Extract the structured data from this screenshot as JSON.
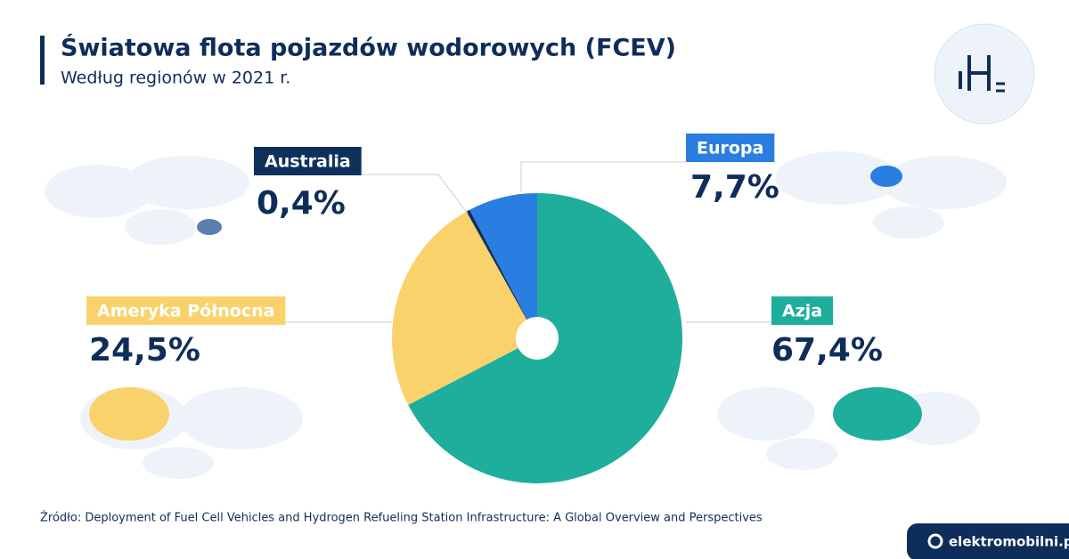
{
  "chart_data": {
    "type": "pie",
    "title": "Światowa flota pojazdów wodorowych (FCEV)",
    "subtitle": "Według regionów w 2021 r.",
    "categories": [
      "Azja",
      "Ameryka Północna",
      "Australia",
      "Europa"
    ],
    "values": [
      67.4,
      24.5,
      0.4,
      7.7
    ],
    "value_labels": [
      "67,4%",
      "24,5%",
      "0,4%",
      "7,7%"
    ],
    "colors": [
      "#1fae9c",
      "#fad26b",
      "#10305c",
      "#2a7de1"
    ],
    "source": "Źródło: Deployment of Fuel Cell Vehicles and Hydrogen Refueling Station Infrastructure: A Global Overview and Perspectives",
    "brand": "elektromobilni.pl"
  }
}
